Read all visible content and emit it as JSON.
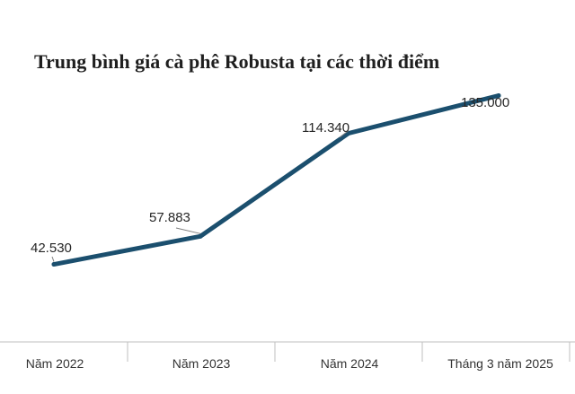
{
  "chart_data": {
    "type": "line",
    "title": "Trung bình giá cà phê Robusta tại các thời điểm",
    "categories": [
      "Năm 2022",
      "Năm 2023",
      "Năm 2024",
      "Tháng 3 năm 2025"
    ],
    "series": [
      {
        "values": [
          42530,
          57883,
          114340,
          135000
        ]
      }
    ],
    "data_labels": [
      "42.530",
      "57.883",
      "114.340",
      "135.000"
    ],
    "ylim": [
      0,
      180000
    ],
    "grid": false,
    "legend": "none",
    "colors": {
      "line": "#1b4f6e",
      "axis": "#bfbfbf"
    }
  }
}
